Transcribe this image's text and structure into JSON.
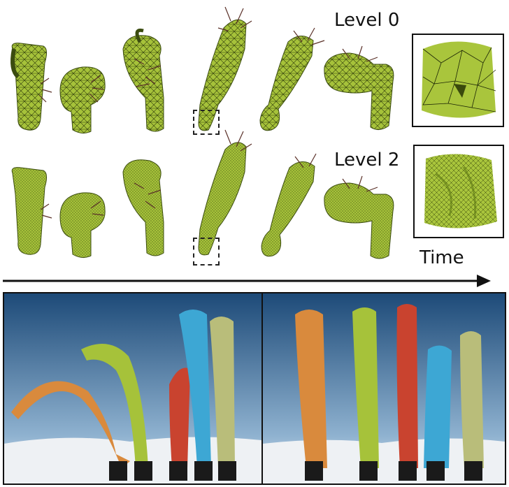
{
  "rows": [
    {
      "label": "Level 0"
    },
    {
      "label": "Level 2"
    }
  ],
  "time_label": "Time",
  "colors": {
    "tube_green": "#a6c23a",
    "tube_dark": "#5f7a14",
    "orange": "#d98a3d",
    "red": "#c9432f",
    "blue": "#3da7d4",
    "olive": "#b9bd7a",
    "sky_top": "#1d4a78",
    "sky_bottom": "#b5cde2"
  }
}
